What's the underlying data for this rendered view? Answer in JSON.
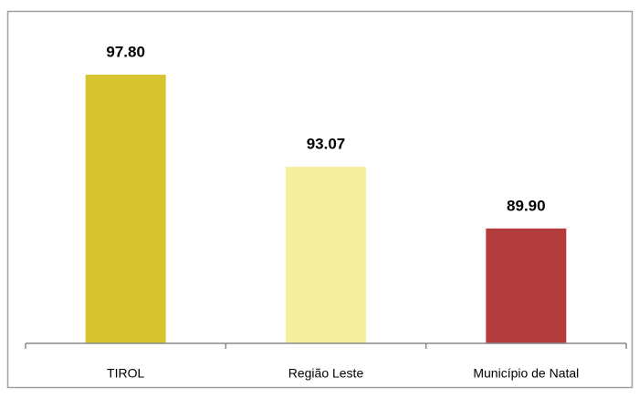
{
  "chart_data": {
    "type": "bar",
    "categories": [
      "TIROL",
      "Região Leste",
      "Município de Natal"
    ],
    "values": [
      97.8,
      93.07,
      89.9
    ],
    "value_labels": [
      "97.80",
      "93.07",
      "89.90"
    ],
    "colors": [
      "#d7c430",
      "#f5ee9c",
      "#b33c3c"
    ],
    "ylim": [
      84,
      100
    ]
  }
}
